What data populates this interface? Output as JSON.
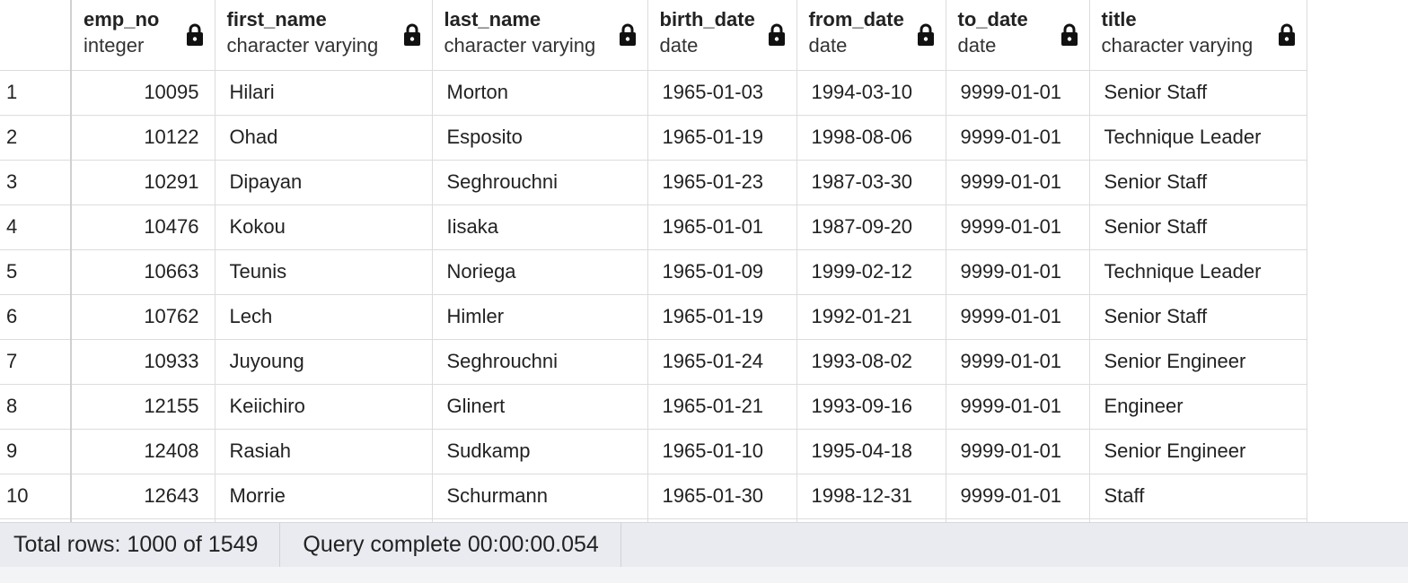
{
  "columns": [
    {
      "name": "emp_no",
      "type": "integer"
    },
    {
      "name": "first_name",
      "type": "character varying"
    },
    {
      "name": "last_name",
      "type": "character varying"
    },
    {
      "name": "birth_date",
      "type": "date"
    },
    {
      "name": "from_date",
      "type": "date"
    },
    {
      "name": "to_date",
      "type": "date"
    },
    {
      "name": "title",
      "type": "character varying"
    }
  ],
  "rows": [
    {
      "n": "1",
      "emp_no": "10095",
      "first_name": "Hilari",
      "last_name": "Morton",
      "birth_date": "1965-01-03",
      "from_date": "1994-03-10",
      "to_date": "9999-01-01",
      "title": "Senior Staff"
    },
    {
      "n": "2",
      "emp_no": "10122",
      "first_name": "Ohad",
      "last_name": "Esposito",
      "birth_date": "1965-01-19",
      "from_date": "1998-08-06",
      "to_date": "9999-01-01",
      "title": "Technique Leader"
    },
    {
      "n": "3",
      "emp_no": "10291",
      "first_name": "Dipayan",
      "last_name": "Seghrouchni",
      "birth_date": "1965-01-23",
      "from_date": "1987-03-30",
      "to_date": "9999-01-01",
      "title": "Senior Staff"
    },
    {
      "n": "4",
      "emp_no": "10476",
      "first_name": "Kokou",
      "last_name": "Iisaka",
      "birth_date": "1965-01-01",
      "from_date": "1987-09-20",
      "to_date": "9999-01-01",
      "title": "Senior Staff"
    },
    {
      "n": "5",
      "emp_no": "10663",
      "first_name": "Teunis",
      "last_name": "Noriega",
      "birth_date": "1965-01-09",
      "from_date": "1999-02-12",
      "to_date": "9999-01-01",
      "title": "Technique Leader"
    },
    {
      "n": "6",
      "emp_no": "10762",
      "first_name": "Lech",
      "last_name": "Himler",
      "birth_date": "1965-01-19",
      "from_date": "1992-01-21",
      "to_date": "9999-01-01",
      "title": "Senior Staff"
    },
    {
      "n": "7",
      "emp_no": "10933",
      "first_name": "Juyoung",
      "last_name": "Seghrouchni",
      "birth_date": "1965-01-24",
      "from_date": "1993-08-02",
      "to_date": "9999-01-01",
      "title": "Senior Engineer"
    },
    {
      "n": "8",
      "emp_no": "12155",
      "first_name": "Keiichiro",
      "last_name": "Glinert",
      "birth_date": "1965-01-21",
      "from_date": "1993-09-16",
      "to_date": "9999-01-01",
      "title": "Engineer"
    },
    {
      "n": "9",
      "emp_no": "12408",
      "first_name": "Rasiah",
      "last_name": "Sudkamp",
      "birth_date": "1965-01-10",
      "from_date": "1995-04-18",
      "to_date": "9999-01-01",
      "title": "Senior Engineer"
    },
    {
      "n": "10",
      "emp_no": "12643",
      "first_name": "Morrie",
      "last_name": "Schurmann",
      "birth_date": "1965-01-30",
      "from_date": "1998-12-31",
      "to_date": "9999-01-01",
      "title": "Staff"
    }
  ],
  "status": {
    "total_rows": "Total rows: 1000 of 1549",
    "query_status": "Query complete 00:00:00.054"
  },
  "icons": {
    "column_lock": "lock-icon"
  }
}
